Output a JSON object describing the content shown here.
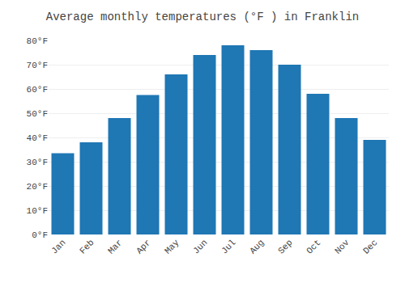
{
  "chart_data": {
    "type": "bar",
    "title": "Average monthly temperatures (°F ) in Franklin",
    "categories": [
      "Jan",
      "Feb",
      "Mar",
      "Apr",
      "May",
      "Jun",
      "Jul",
      "Aug",
      "Sep",
      "Oct",
      "Nov",
      "Dec"
    ],
    "values": [
      33.5,
      38,
      48,
      57.5,
      66,
      74,
      78,
      76,
      70,
      58,
      48,
      39
    ],
    "ylim": [
      0,
      80
    ],
    "yticks": [
      {
        "value": 0,
        "label": "0°F"
      },
      {
        "value": 10,
        "label": "10°F"
      },
      {
        "value": 20,
        "label": "20°F"
      },
      {
        "value": 30,
        "label": "30°F"
      },
      {
        "value": 40,
        "label": "40°F"
      },
      {
        "value": 50,
        "label": "50°F"
      },
      {
        "value": 60,
        "label": "60°F"
      },
      {
        "value": 70,
        "label": "70°F"
      },
      {
        "value": 80,
        "label": "80°F"
      }
    ],
    "grid": true
  }
}
